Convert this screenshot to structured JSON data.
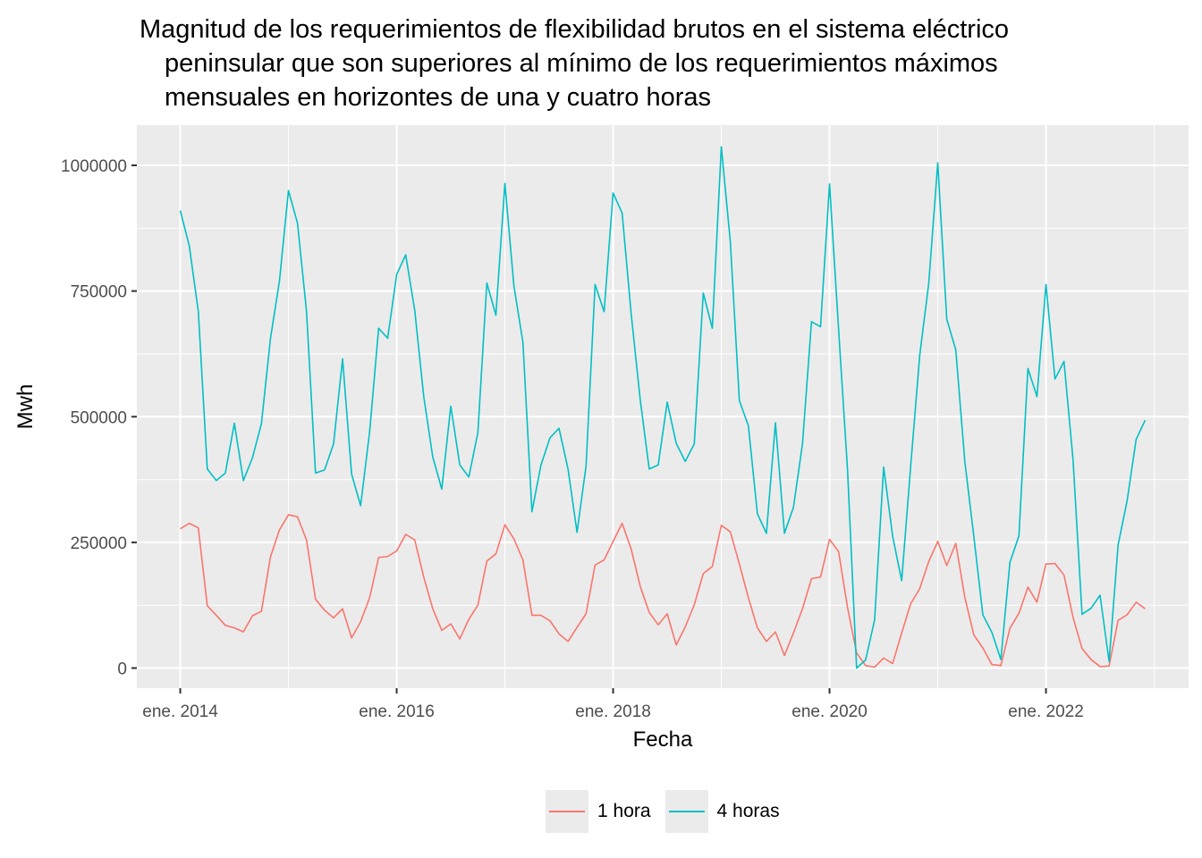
{
  "chart_data": {
    "type": "line",
    "title": [
      "Magnitud de los requerimientos de flexibilidad brutos en el sistema eléctrico",
      "peninsular que son superiores al mínimo de los requerimientos máximos",
      "mensuales en horizontes de una y cuatro horas"
    ],
    "xlabel": "Fecha",
    "ylabel": "Mwh",
    "x_start": "2014-01",
    "x_end": "2022-12",
    "x_ticks": [
      {
        "date": "2014-01",
        "label": "ene. 2014"
      },
      {
        "date": "2016-01",
        "label": "ene. 2016"
      },
      {
        "date": "2018-01",
        "label": "ene. 2018"
      },
      {
        "date": "2020-01",
        "label": "ene. 2020"
      },
      {
        "date": "2022-01",
        "label": "ene. 2022"
      }
    ],
    "y_ticks": [
      0,
      250000,
      500000,
      750000,
      1000000
    ],
    "y_tick_labels": [
      "0",
      "250000",
      "500000",
      "750000",
      "1000000"
    ],
    "ylim": [
      -40000,
      1080000
    ],
    "grid": true,
    "legend_position": "bottom",
    "series": [
      {
        "name": "1 hora",
        "color": "#F8766D",
        "values": [
          277000,
          288000,
          279000,
          124000,
          105000,
          85000,
          80000,
          72000,
          104000,
          113000,
          221000,
          275000,
          305000,
          301000,
          255000,
          137000,
          115000,
          100000,
          118000,
          60000,
          92000,
          140000,
          220000,
          222000,
          233000,
          266000,
          255000,
          181000,
          118000,
          75000,
          88000,
          58000,
          97000,
          125000,
          213000,
          227000,
          285000,
          257000,
          215000,
          105000,
          105000,
          94000,
          68000,
          53000,
          81000,
          108000,
          205000,
          215000,
          252000,
          288000,
          237000,
          163000,
          111000,
          86000,
          108000,
          46000,
          82000,
          126000,
          188000,
          202000,
          284000,
          271000,
          207000,
          140000,
          80000,
          53000,
          72000,
          25000,
          70000,
          118000,
          178000,
          181000,
          256000,
          232000,
          120000,
          30000,
          5000,
          2000,
          20000,
          9000,
          70000,
          128000,
          158000,
          212000,
          252000,
          204000,
          248000,
          141000,
          66000,
          40000,
          7000,
          5000,
          79000,
          109000,
          161000,
          131000,
          207000,
          208000,
          185000,
          101000,
          39000,
          17000,
          3000,
          4000,
          95000,
          106000,
          131000,
          118000
        ]
      },
      {
        "name": "4 horas",
        "color": "#00BFC4",
        "values": [
          910000,
          840000,
          710000,
          396000,
          373000,
          388000,
          487000,
          373000,
          418000,
          486000,
          655000,
          770000,
          950000,
          885000,
          710000,
          388000,
          394000,
          446000,
          615000,
          386000,
          323000,
          470000,
          676000,
          656000,
          783000,
          822000,
          712000,
          540000,
          420000,
          356000,
          521000,
          404000,
          380000,
          468000,
          766000,
          702000,
          964000,
          760000,
          648000,
          311000,
          404000,
          458000,
          477000,
          396000,
          270000,
          402000,
          763000,
          709000,
          945000,
          905000,
          705000,
          535000,
          396000,
          404000,
          529000,
          447000,
          411000,
          446000,
          746000,
          676000,
          1037000,
          848000,
          532000,
          482000,
          307000,
          268000,
          488000,
          268000,
          320000,
          446000,
          689000,
          679000,
          963000,
          675000,
          393000,
          0,
          16000,
          96000,
          400000,
          262000,
          174000,
          402000,
          622000,
          765000,
          1005000,
          694000,
          633000,
          411000,
          262000,
          106000,
          71000,
          17000,
          210000,
          263000,
          596000,
          540000,
          763000,
          575000,
          610000,
          415000,
          107000,
          119000,
          145000,
          13000,
          245000,
          333000,
          455000,
          493000
        ]
      }
    ]
  }
}
